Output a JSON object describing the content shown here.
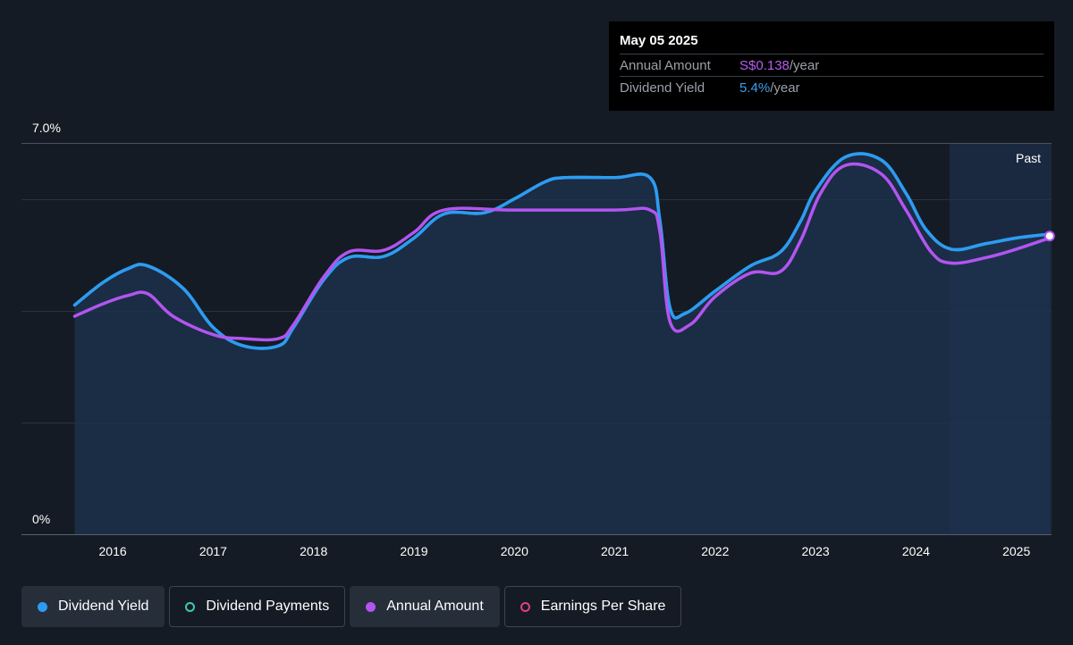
{
  "tooltip": {
    "date": "May 05 2025",
    "rows": [
      {
        "label": "Annual Amount",
        "value": "S$0.138",
        "unit": "/year"
      },
      {
        "label": "Dividend Yield",
        "value": "5.4%",
        "unit": "/year"
      }
    ]
  },
  "legend": [
    {
      "label": "Dividend Yield",
      "color": "#2d9cf0",
      "style": "filled-dot",
      "active": true
    },
    {
      "label": "Dividend Payments",
      "color": "#3ec8b4",
      "style": "ring",
      "active": false
    },
    {
      "label": "Annual Amount",
      "color": "#b255f0",
      "style": "filled-dot",
      "active": true
    },
    {
      "label": "Earnings Per Share",
      "color": "#e0407a",
      "style": "ring",
      "active": false
    }
  ],
  "chart_data": {
    "type": "line",
    "region_label": "Past",
    "y_axis": {
      "min": 0,
      "max": 7.0,
      "labels": [
        "7.0%",
        "0%"
      ],
      "unit": "%"
    },
    "x_axis": {
      "min": 2015.5,
      "max": 2025.35,
      "ticks": [
        "2016",
        "2017",
        "2018",
        "2019",
        "2020",
        "2021",
        "2022",
        "2023",
        "2024",
        "2025"
      ]
    },
    "forecast_start": 2024.35,
    "series": [
      {
        "name": "Dividend Yield",
        "color": "#2d9cf0",
        "area": true,
        "points": [
          [
            2015.62,
            4.1
          ],
          [
            2015.9,
            4.5
          ],
          [
            2016.15,
            4.75
          ],
          [
            2016.35,
            4.8
          ],
          [
            2016.7,
            4.4
          ],
          [
            2017.0,
            3.7
          ],
          [
            2017.3,
            3.37
          ],
          [
            2017.65,
            3.37
          ],
          [
            2017.8,
            3.7
          ],
          [
            2018.1,
            4.55
          ],
          [
            2018.35,
            4.95
          ],
          [
            2018.7,
            4.97
          ],
          [
            2019.0,
            5.3
          ],
          [
            2019.3,
            5.73
          ],
          [
            2019.7,
            5.75
          ],
          [
            2020.0,
            6.0
          ],
          [
            2020.3,
            6.3
          ],
          [
            2020.5,
            6.38
          ],
          [
            2021.0,
            6.38
          ],
          [
            2021.35,
            6.38
          ],
          [
            2021.45,
            5.6
          ],
          [
            2021.55,
            4.05
          ],
          [
            2021.7,
            3.95
          ],
          [
            2022.0,
            4.35
          ],
          [
            2022.35,
            4.8
          ],
          [
            2022.65,
            5.05
          ],
          [
            2022.85,
            5.6
          ],
          [
            2023.0,
            6.15
          ],
          [
            2023.3,
            6.75
          ],
          [
            2023.65,
            6.7
          ],
          [
            2023.9,
            6.1
          ],
          [
            2024.1,
            5.45
          ],
          [
            2024.35,
            5.1
          ],
          [
            2024.7,
            5.2
          ],
          [
            2025.0,
            5.3
          ],
          [
            2025.33,
            5.37
          ]
        ]
      },
      {
        "name": "Annual Amount",
        "color": "#b255f0",
        "area": false,
        "points": [
          [
            2015.62,
            3.9
          ],
          [
            2015.9,
            4.12
          ],
          [
            2016.15,
            4.27
          ],
          [
            2016.35,
            4.3
          ],
          [
            2016.6,
            3.9
          ],
          [
            2017.0,
            3.57
          ],
          [
            2017.3,
            3.5
          ],
          [
            2017.65,
            3.5
          ],
          [
            2017.8,
            3.75
          ],
          [
            2018.1,
            4.6
          ],
          [
            2018.35,
            5.05
          ],
          [
            2018.7,
            5.08
          ],
          [
            2019.0,
            5.4
          ],
          [
            2019.3,
            5.8
          ],
          [
            2020.0,
            5.8
          ],
          [
            2021.0,
            5.8
          ],
          [
            2021.35,
            5.8
          ],
          [
            2021.45,
            5.4
          ],
          [
            2021.55,
            3.8
          ],
          [
            2021.75,
            3.75
          ],
          [
            2022.0,
            4.25
          ],
          [
            2022.35,
            4.67
          ],
          [
            2022.65,
            4.7
          ],
          [
            2022.85,
            5.25
          ],
          [
            2023.05,
            6.1
          ],
          [
            2023.3,
            6.6
          ],
          [
            2023.65,
            6.45
          ],
          [
            2023.9,
            5.8
          ],
          [
            2024.15,
            5.05
          ],
          [
            2024.35,
            4.85
          ],
          [
            2024.7,
            4.95
          ],
          [
            2025.0,
            5.1
          ],
          [
            2025.33,
            5.3
          ]
        ]
      }
    ]
  }
}
